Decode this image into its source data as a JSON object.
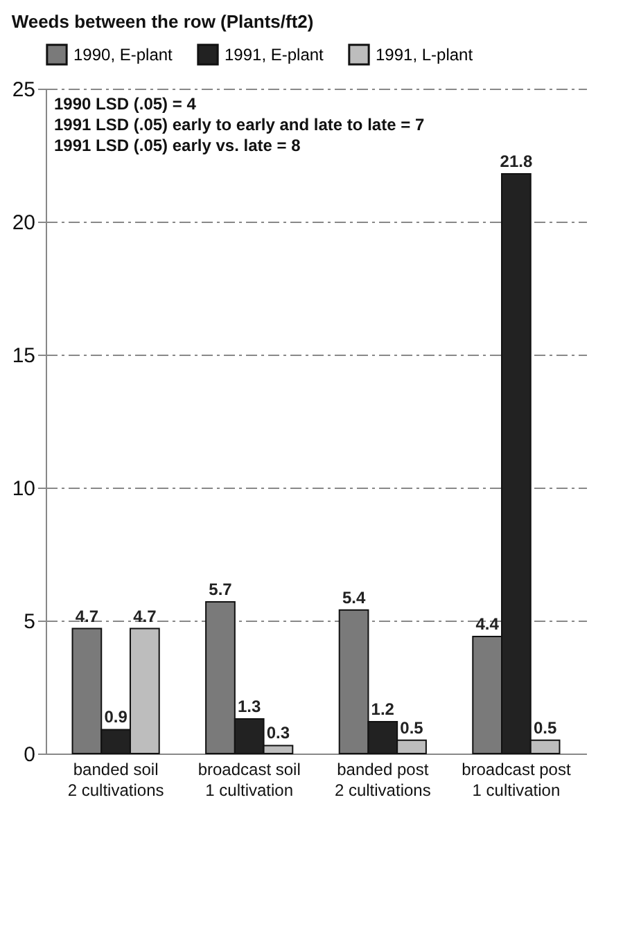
{
  "chart_data": {
    "type": "bar",
    "title": "Weeds between the row (Plants/ft2)",
    "categories": [
      "banded soil\n2 cultivations",
      "broadcast soil\n1 cultivation",
      "banded post\n2 cultivations",
      "broadcast post\n1 cultivation"
    ],
    "series": [
      {
        "name": "1990, E-plant",
        "color": "#7a7a7a",
        "values": [
          4.7,
          5.7,
          5.4,
          4.4
        ]
      },
      {
        "name": "1991, E-plant",
        "color": "#222222",
        "values": [
          0.9,
          1.3,
          1.2,
          21.8
        ]
      },
      {
        "name": "1991, L-plant",
        "color": "#bdbdbd",
        "values": [
          4.7,
          0.3,
          0.5,
          0.5
        ]
      }
    ],
    "ylim": [
      0,
      25
    ],
    "yticks": [
      0,
      5,
      10,
      15,
      20,
      25
    ],
    "grid": "y",
    "legend": "top",
    "data_labels": true,
    "annotations": [
      "1990 LSD (.05) = 4",
      "1991 LSD (.05) early to early and late to late = 7",
      "1991 LSD (.05) early vs. late = 8"
    ]
  }
}
